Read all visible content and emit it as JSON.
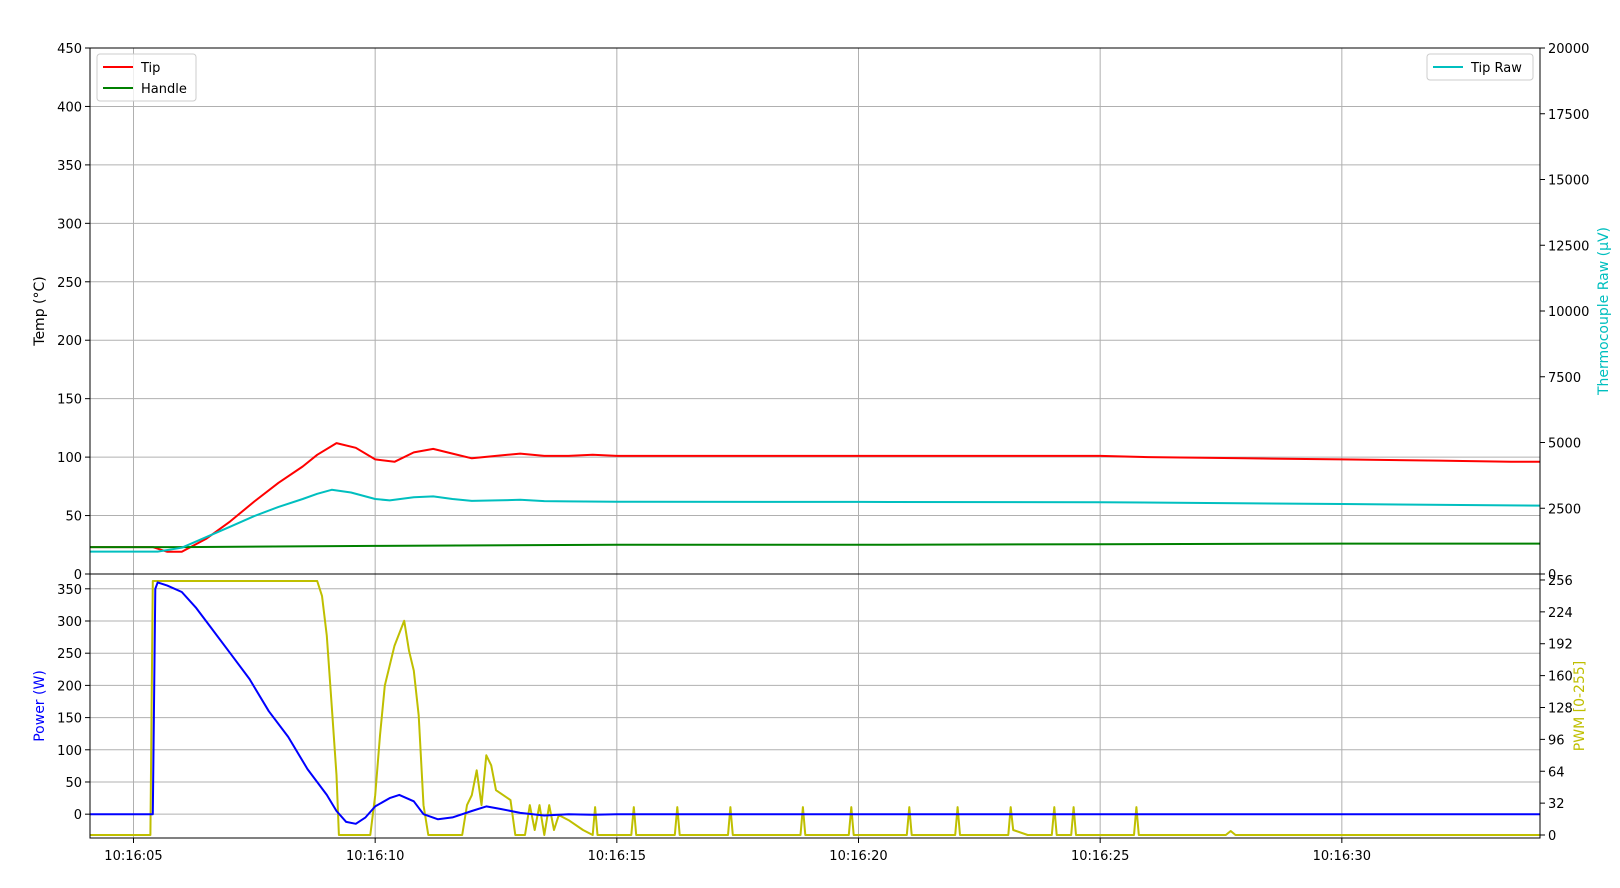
{
  "colors": {
    "tip": "#ff0000",
    "handle": "#008000",
    "tip_raw": "#00bfbf",
    "power": "#0000ff",
    "pwm": "#bfbf00",
    "grid": "#b0b0b0"
  },
  "chart_data": [
    {
      "type": "line",
      "panel": "top",
      "ylabel": "Temp (°C)",
      "ylim": [
        0,
        450
      ],
      "yticks": [
        0,
        50,
        100,
        150,
        200,
        250,
        300,
        350,
        400,
        450
      ],
      "y2label": "Thermocouple Raw (µV)",
      "y2lim": [
        0,
        20000
      ],
      "y2ticks": [
        0,
        2500,
        5000,
        7500,
        10000,
        12500,
        15000,
        17500,
        20000
      ],
      "xlim": [
        4.1,
        34.1
      ],
      "grid": true,
      "legend_left": "top-left",
      "legend_right": "top-right",
      "series": [
        {
          "name": "Tip",
          "axis": "left",
          "color_key": "tip",
          "points": [
            [
              4.1,
              23
            ],
            [
              5.4,
              23
            ],
            [
              5.7,
              19
            ],
            [
              6.0,
              19
            ],
            [
              6.5,
              30
            ],
            [
              7.0,
              45
            ],
            [
              7.5,
              62
            ],
            [
              8.0,
              78
            ],
            [
              8.5,
              92
            ],
            [
              8.8,
              102
            ],
            [
              9.2,
              112
            ],
            [
              9.6,
              108
            ],
            [
              10.0,
              98
            ],
            [
              10.4,
              96
            ],
            [
              10.8,
              104
            ],
            [
              11.2,
              107
            ],
            [
              11.6,
              103
            ],
            [
              12.0,
              99
            ],
            [
              12.5,
              101
            ],
            [
              13.0,
              103
            ],
            [
              13.5,
              101
            ],
            [
              14.0,
              101
            ],
            [
              14.5,
              102
            ],
            [
              15.0,
              101
            ],
            [
              20.0,
              101
            ],
            [
              25.0,
              101
            ],
            [
              26.0,
              100
            ],
            [
              28.0,
              99
            ],
            [
              30.0,
              98
            ],
            [
              32.0,
              97
            ],
            [
              33.5,
              96
            ],
            [
              34.1,
              96
            ]
          ]
        },
        {
          "name": "Handle",
          "axis": "left",
          "color_key": "handle",
          "points": [
            [
              4.1,
              23
            ],
            [
              6.0,
              23
            ],
            [
              10.0,
              24
            ],
            [
              15.0,
              25
            ],
            [
              20.0,
              25
            ],
            [
              25.0,
              25.5
            ],
            [
              30.0,
              26
            ],
            [
              34.1,
              26
            ]
          ]
        },
        {
          "name": "Tip Raw",
          "axis": "right",
          "color_key": "tip_raw",
          "points": [
            [
              4.1,
              850
            ],
            [
              5.5,
              850
            ],
            [
              6.0,
              1000
            ],
            [
              6.5,
              1400
            ],
            [
              7.0,
              1800
            ],
            [
              7.5,
              2200
            ],
            [
              8.0,
              2550
            ],
            [
              8.5,
              2850
            ],
            [
              8.8,
              3050
            ],
            [
              9.1,
              3200
            ],
            [
              9.5,
              3100
            ],
            [
              10.0,
              2850
            ],
            [
              10.3,
              2800
            ],
            [
              10.8,
              2920
            ],
            [
              11.2,
              2950
            ],
            [
              11.6,
              2850
            ],
            [
              12.0,
              2780
            ],
            [
              12.5,
              2800
            ],
            [
              13.0,
              2820
            ],
            [
              13.5,
              2770
            ],
            [
              14.0,
              2760
            ],
            [
              15.0,
              2750
            ],
            [
              20.0,
              2740
            ],
            [
              25.0,
              2730
            ],
            [
              30.0,
              2660
            ],
            [
              34.1,
              2600
            ]
          ]
        }
      ]
    },
    {
      "type": "line",
      "panel": "bottom",
      "xlabel": "",
      "ylabel": "Power (W)",
      "ylim": [
        -37,
        373
      ],
      "yticks": [
        0,
        50,
        100,
        150,
        200,
        250,
        300,
        350
      ],
      "y2label": "PWM [0-255]",
      "y2lim": [
        -3,
        262
      ],
      "y2ticks": [
        0,
        32,
        64,
        96,
        128,
        160,
        192,
        224,
        256
      ],
      "xlim": [
        4.1,
        34.1
      ],
      "xticks": [
        5,
        10,
        15,
        20,
        25,
        30
      ],
      "xticklabels": [
        "10:16:05",
        "10:16:10",
        "10:16:15",
        "10:16:20",
        "10:16:25",
        "10:16:30"
      ],
      "grid": true,
      "series": [
        {
          "axis": "left",
          "color_key": "power",
          "points": [
            [
              4.1,
              0
            ],
            [
              5.4,
              0
            ],
            [
              5.45,
              350
            ],
            [
              5.5,
              360
            ],
            [
              5.7,
              355
            ],
            [
              6.0,
              345
            ],
            [
              6.3,
              320
            ],
            [
              6.6,
              290
            ],
            [
              7.0,
              250
            ],
            [
              7.4,
              210
            ],
            [
              7.8,
              160
            ],
            [
              8.2,
              120
            ],
            [
              8.6,
              70
            ],
            [
              9.0,
              30
            ],
            [
              9.2,
              5
            ],
            [
              9.4,
              -12
            ],
            [
              9.6,
              -15
            ],
            [
              9.8,
              -5
            ],
            [
              10.0,
              12
            ],
            [
              10.3,
              25
            ],
            [
              10.5,
              30
            ],
            [
              10.8,
              20
            ],
            [
              11.0,
              0
            ],
            [
              11.3,
              -8
            ],
            [
              11.6,
              -5
            ],
            [
              12.0,
              5
            ],
            [
              12.3,
              12
            ],
            [
              12.6,
              8
            ],
            [
              13.0,
              2
            ],
            [
              13.5,
              -2
            ],
            [
              14.0,
              0
            ],
            [
              14.5,
              -1
            ],
            [
              15.0,
              0
            ],
            [
              20.0,
              0
            ],
            [
              25.0,
              0
            ],
            [
              34.1,
              0
            ]
          ]
        },
        {
          "axis": "right",
          "color_key": "pwm",
          "points": [
            [
              4.1,
              0
            ],
            [
              5.35,
              0
            ],
            [
              5.4,
              255
            ],
            [
              8.8,
              255
            ],
            [
              8.9,
              240
            ],
            [
              9.0,
              200
            ],
            [
              9.1,
              130
            ],
            [
              9.2,
              60
            ],
            [
              9.25,
              0
            ],
            [
              9.9,
              0
            ],
            [
              10.0,
              40
            ],
            [
              10.1,
              100
            ],
            [
              10.2,
              150
            ],
            [
              10.4,
              190
            ],
            [
              10.6,
              215
            ],
            [
              10.7,
              185
            ],
            [
              10.8,
              165
            ],
            [
              10.9,
              120
            ],
            [
              11.0,
              30
            ],
            [
              11.1,
              0
            ],
            [
              11.8,
              0
            ],
            [
              11.9,
              30
            ],
            [
              12.0,
              40
            ],
            [
              12.1,
              65
            ],
            [
              12.2,
              30
            ],
            [
              12.3,
              80
            ],
            [
              12.4,
              70
            ],
            [
              12.5,
              45
            ],
            [
              12.8,
              35
            ],
            [
              12.9,
              0
            ],
            [
              13.1,
              0
            ],
            [
              13.2,
              30
            ],
            [
              13.3,
              5
            ],
            [
              13.4,
              30
            ],
            [
              13.5,
              0
            ],
            [
              13.6,
              30
            ],
            [
              13.7,
              5
            ],
            [
              13.8,
              20
            ],
            [
              14.0,
              15
            ],
            [
              14.3,
              5
            ],
            [
              14.5,
              0
            ],
            [
              14.55,
              28
            ],
            [
              14.6,
              0
            ],
            [
              15.3,
              0
            ],
            [
              15.35,
              28
            ],
            [
              15.4,
              0
            ],
            [
              16.2,
              0
            ],
            [
              16.25,
              28
            ],
            [
              16.3,
              0
            ],
            [
              17.3,
              0
            ],
            [
              17.35,
              28
            ],
            [
              17.4,
              0
            ],
            [
              18.8,
              0
            ],
            [
              18.85,
              28
            ],
            [
              18.9,
              0
            ],
            [
              19.8,
              0
            ],
            [
              19.85,
              28
            ],
            [
              19.9,
              0
            ],
            [
              21.0,
              0
            ],
            [
              21.05,
              28
            ],
            [
              21.1,
              0
            ],
            [
              22.0,
              0
            ],
            [
              22.05,
              28
            ],
            [
              22.1,
              0
            ],
            [
              23.1,
              0
            ],
            [
              23.15,
              28
            ],
            [
              23.2,
              5
            ],
            [
              23.5,
              0
            ],
            [
              24.0,
              0
            ],
            [
              24.05,
              28
            ],
            [
              24.1,
              0
            ],
            [
              24.4,
              0
            ],
            [
              24.45,
              28
            ],
            [
              24.5,
              0
            ],
            [
              25.7,
              0
            ],
            [
              25.75,
              28
            ],
            [
              25.8,
              0
            ],
            [
              27.6,
              0
            ],
            [
              27.7,
              4
            ],
            [
              27.8,
              0
            ],
            [
              34.1,
              0
            ]
          ]
        }
      ]
    }
  ]
}
